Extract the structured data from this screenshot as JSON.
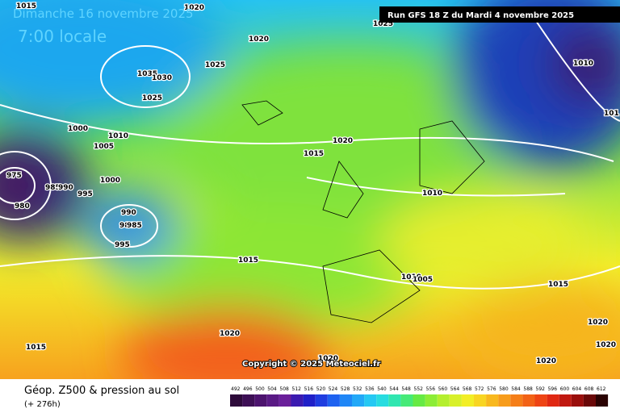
{
  "header": {
    "date": "Dimanche 16 novembre 2025",
    "time": "7:00 locale",
    "run": "Run GFS 18 Z du Mardi 4 novembre 2025"
  },
  "isobar_labels": [
    "1015",
    "1020",
    "1025",
    "1020",
    "1025",
    "1035",
    "1030",
    "1025",
    "1000",
    "1010",
    "1005",
    "1020",
    "1015",
    "1010",
    "1010",
    "975",
    "985",
    "990",
    "995",
    "980",
    "1000",
    "990",
    "980",
    "985",
    "995",
    "1015",
    "1010",
    "1005",
    "1015",
    "1020",
    "1015",
    "1020",
    "1020",
    "1020",
    "1020",
    "101"
  ],
  "copyright": "Copyright © 2025 Meteociel.fr",
  "footer": {
    "title": "Géop. Z500 & pression au sol",
    "subtitle": "(+ 276h)"
  },
  "scale": [
    "492",
    "496",
    "500",
    "504",
    "508",
    "512",
    "516",
    "520",
    "524",
    "528",
    "532",
    "536",
    "540",
    "544",
    "548",
    "552",
    "556",
    "560",
    "564",
    "568",
    "572",
    "576",
    "580",
    "584",
    "588",
    "592",
    "596",
    "600",
    "604",
    "608",
    "612"
  ]
}
